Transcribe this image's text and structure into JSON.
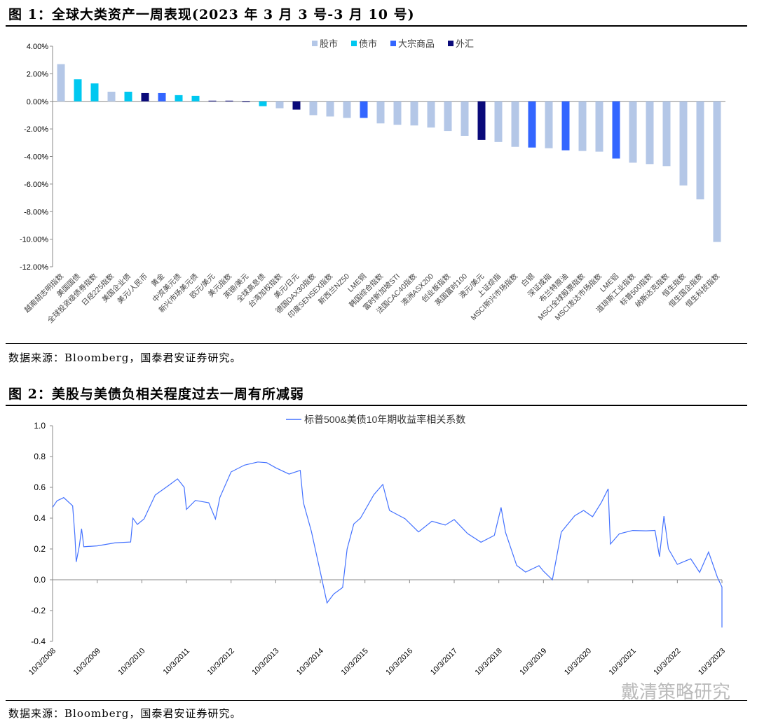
{
  "fig1_title": "图 1：全球大类资产一周表现(2023 年 3 月 3 号-3 月 10 号)",
  "fig2_title": "图 2：美股与美债负相关程度过去一周有所减弱",
  "source1": "数据来源：Bloomberg，国泰君安证券研究。",
  "source2": "数据来源：Bloomberg，国泰君安证券研究。",
  "watermark": "戴清策略研究",
  "colors": {
    "股市": "#b4c7e7",
    "债市": "#00c8f0",
    "大宗商品": "#3366ff",
    "外汇": "#0a0a7a",
    "line": "#4472ff"
  },
  "chart_data": [
    {
      "type": "bar",
      "ylim": [
        -12,
        4
      ],
      "yticks": [
        "4.00%",
        "2.00%",
        "0.00%",
        "-2.00%",
        "-4.00%",
        "-6.00%",
        "-8.00%",
        "-10.00%",
        "-12.00%"
      ],
      "legend": [
        "股市",
        "债市",
        "大宗商品",
        "外汇"
      ],
      "legend_position": "top",
      "categories": [
        "越南胡志明指数",
        "美国国债",
        "全球投资级债券指数",
        "日经225指数",
        "美国企业债",
        "美元/人民币",
        "黄金",
        "中资美元债",
        "新兴市场美元债",
        "欧元/美元",
        "美元指数",
        "英镑/美元",
        "全球高息债",
        "台湾加权指数",
        "美元/日元",
        "德国DAX30指数",
        "印度SENSEX指数",
        "新西兰NZ50",
        "LME铜",
        "韩国综合指数",
        "富时新加坡STI",
        "法国CAC40指数",
        "澳洲ASX200",
        "创业板指数",
        "英国富时100",
        "澳元/美元",
        "上证综指",
        "MSCI新兴市场指数",
        "白银",
        "深证成指",
        "布兰特原油",
        "MSCI全球股票指数",
        "MSCI发达市场指数",
        "LME铝",
        "道琼斯工业指数",
        "标普500指数",
        "纳斯达克指数",
        "恒生指数",
        "恒生国企指数",
        "恒生科技指数"
      ],
      "groups": [
        "股市",
        "债市",
        "债市",
        "股市",
        "债市",
        "外汇",
        "大宗商品",
        "债市",
        "债市",
        "外汇",
        "外汇",
        "外汇",
        "债市",
        "股市",
        "外汇",
        "股市",
        "股市",
        "股市",
        "大宗商品",
        "股市",
        "股市",
        "股市",
        "股市",
        "股市",
        "股市",
        "外汇",
        "股市",
        "股市",
        "大宗商品",
        "股市",
        "大宗商品",
        "股市",
        "股市",
        "大宗商品",
        "股市",
        "股市",
        "股市",
        "股市",
        "股市",
        "股市"
      ],
      "values": [
        2.7,
        1.6,
        1.3,
        0.7,
        0.7,
        0.6,
        0.6,
        0.45,
        0.4,
        0.05,
        0.05,
        -0.03,
        -0.35,
        -0.5,
        -0.6,
        -1.0,
        -1.1,
        -1.2,
        -1.2,
        -1.6,
        -1.7,
        -1.75,
        -1.9,
        -2.15,
        -2.5,
        -2.8,
        -2.95,
        -3.3,
        -3.35,
        -3.4,
        -3.55,
        -3.6,
        -3.65,
        -4.15,
        -4.45,
        -4.55,
        -4.7,
        -6.1,
        -7.1,
        -10.2
      ]
    },
    {
      "type": "line",
      "legend": "标普500&美债10年期收益率相关系数",
      "ylim": [
        -0.4,
        1.0
      ],
      "yticks": [
        "1.0",
        "0.8",
        "0.6",
        "0.4",
        "0.2",
        "0.0",
        "-0.2",
        "-0.4"
      ],
      "xticks": [
        "10/3/2008",
        "10/3/2009",
        "10/3/2010",
        "10/3/2011",
        "10/3/2012",
        "10/3/2013",
        "10/3/2014",
        "10/3/2015",
        "10/3/2016",
        "10/3/2017",
        "10/3/2018",
        "10/3/2019",
        "10/3/2020",
        "10/3/2021",
        "10/3/2022",
        "10/3/2023"
      ],
      "x_years_since_start": [
        0,
        0.1,
        0.25,
        0.45,
        0.5,
        0.53,
        0.6,
        0.65,
        0.7,
        1.0,
        1.4,
        1.75,
        1.8,
        1.9,
        2.05,
        2.3,
        2.6,
        2.8,
        2.95,
        3.0,
        3.2,
        3.5,
        3.65,
        3.75,
        4.0,
        4.3,
        4.6,
        4.8,
        5.0,
        5.3,
        5.55,
        5.62,
        5.8,
        6.0,
        6.15,
        6.3,
        6.5,
        6.6,
        6.75,
        6.9,
        7.2,
        7.4,
        7.55,
        7.9,
        8.2,
        8.5,
        8.8,
        9.0,
        9.3,
        9.6,
        9.9,
        10.05,
        10.15,
        10.4,
        10.6,
        10.9,
        11.0,
        11.2,
        11.4,
        11.7,
        11.9,
        12.1,
        12.3,
        12.45,
        12.5,
        12.7,
        13.0,
        13.3,
        13.5,
        13.6,
        13.7,
        13.8,
        14.0,
        14.3,
        14.5,
        14.7,
        14.9,
        15.0,
        15.3,
        15.6,
        15.85,
        15.95,
        16.0
      ],
      "values": [
        0.47,
        0.5,
        0.52,
        0.48,
        0.3,
        0.13,
        0.22,
        0.32,
        0.2,
        0.22,
        0.25,
        0.26,
        0.4,
        0.35,
        0.38,
        0.55,
        0.62,
        0.67,
        0.6,
        0.45,
        0.5,
        0.5,
        0.4,
        0.55,
        0.7,
        0.74,
        0.75,
        0.76,
        0.73,
        0.7,
        0.71,
        0.5,
        0.3,
        0.05,
        -0.15,
        -0.08,
        -0.05,
        0.2,
        0.35,
        0.4,
        0.55,
        0.63,
        0.45,
        0.4,
        0.3,
        0.38,
        0.35,
        0.4,
        0.3,
        0.25,
        0.28,
        0.47,
        0.3,
        0.1,
        0.05,
        0.1,
        0.05,
        0.0,
        0.3,
        0.42,
        0.45,
        0.42,
        0.5,
        0.59,
        0.22,
        0.3,
        0.32,
        0.33,
        0.32,
        0.15,
        0.4,
        0.2,
        0.1,
        0.15,
        0.05,
        0.18,
        0.0,
        -0.05,
        -0.2,
        -0.28,
        -0.3,
        -0.31,
        -0.24
      ]
    }
  ]
}
